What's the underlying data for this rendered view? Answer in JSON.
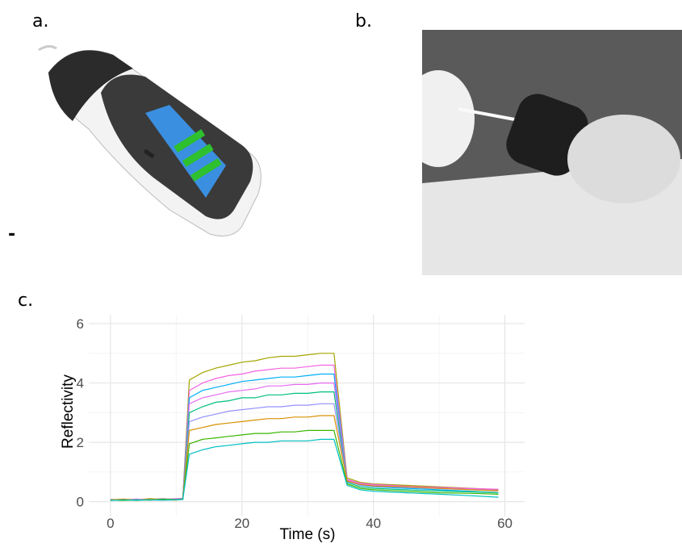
{
  "panels": {
    "a": {
      "label": "a.",
      "note": "-"
    },
    "b": {
      "label": "b."
    },
    "c": {
      "label": "c."
    }
  },
  "chart_data": {
    "type": "line",
    "x_label": "Time (s)",
    "y_label": "Reflectivity",
    "xlim": [
      -3.3,
      63
    ],
    "ylim": [
      -0.5,
      6.3
    ],
    "xticks": [
      0,
      20,
      40,
      60
    ],
    "yticks": [
      0,
      2,
      4,
      6
    ],
    "x_minor_grid": [
      10,
      30,
      50
    ],
    "y_minor_grid": [
      1,
      3,
      5
    ],
    "grid": true,
    "x": [
      0,
      2,
      4,
      6,
      8,
      10,
      11,
      12,
      14,
      16,
      18,
      20,
      22,
      24,
      26,
      28,
      30,
      32,
      34,
      36,
      38,
      40,
      45,
      50,
      55,
      59
    ],
    "series": [
      {
        "color": "#a3a500",
        "values": [
          0.05,
          0.08,
          0.06,
          0.1,
          0.07,
          0.09,
          0.12,
          4.1,
          4.35,
          4.5,
          4.6,
          4.7,
          4.75,
          4.85,
          4.9,
          4.9,
          4.95,
          5.0,
          5.0,
          0.8,
          0.65,
          0.6,
          0.55,
          0.5,
          0.45,
          0.4
        ]
      },
      {
        "color": "#f564e3",
        "values": [
          0.06,
          0.05,
          0.08,
          0.07,
          0.1,
          0.06,
          0.1,
          3.75,
          4.0,
          4.15,
          4.25,
          4.3,
          4.4,
          4.45,
          4.5,
          4.5,
          4.55,
          4.6,
          4.6,
          0.75,
          0.62,
          0.58,
          0.52,
          0.48,
          0.44,
          0.42
        ]
      },
      {
        "color": "#00b0f6",
        "values": [
          0.04,
          0.07,
          0.05,
          0.08,
          0.06,
          0.07,
          0.09,
          3.5,
          3.75,
          3.85,
          3.95,
          4.05,
          4.1,
          4.15,
          4.2,
          4.2,
          4.25,
          4.3,
          4.3,
          0.7,
          0.55,
          0.5,
          0.45,
          0.4,
          0.35,
          0.3
        ]
      },
      {
        "color": "#e76bf3",
        "values": [
          0.07,
          0.06,
          0.09,
          0.05,
          0.08,
          0.1,
          0.11,
          3.3,
          3.5,
          3.6,
          3.7,
          3.75,
          3.8,
          3.9,
          3.9,
          3.95,
          3.95,
          4.0,
          4.0,
          0.72,
          0.6,
          0.55,
          0.5,
          0.46,
          0.42,
          0.38
        ]
      },
      {
        "color": "#00bf7d",
        "values": [
          0.05,
          0.06,
          0.04,
          0.07,
          0.09,
          0.06,
          0.08,
          3.0,
          3.2,
          3.35,
          3.4,
          3.5,
          3.5,
          3.6,
          3.6,
          3.65,
          3.65,
          3.7,
          3.7,
          0.65,
          0.5,
          0.45,
          0.4,
          0.36,
          0.33,
          0.3
        ]
      },
      {
        "color": "#9590ff",
        "values": [
          0.08,
          0.05,
          0.07,
          0.06,
          0.05,
          0.08,
          0.1,
          2.7,
          2.85,
          2.95,
          3.05,
          3.1,
          3.15,
          3.2,
          3.2,
          3.25,
          3.25,
          3.3,
          3.3,
          0.68,
          0.56,
          0.52,
          0.48,
          0.44,
          0.4,
          0.36
        ]
      },
      {
        "color": "#d89000",
        "values": [
          0.06,
          0.09,
          0.05,
          0.08,
          0.07,
          0.05,
          0.09,
          2.4,
          2.5,
          2.6,
          2.65,
          2.7,
          2.75,
          2.8,
          2.8,
          2.85,
          2.85,
          2.9,
          2.9,
          0.7,
          0.58,
          0.53,
          0.5,
          0.45,
          0.4,
          0.37
        ]
      },
      {
        "color": "#39b600",
        "values": [
          0.05,
          0.04,
          0.06,
          0.05,
          0.08,
          0.07,
          0.08,
          1.95,
          2.1,
          2.15,
          2.2,
          2.25,
          2.3,
          2.3,
          2.35,
          2.35,
          2.4,
          2.4,
          2.4,
          0.6,
          0.45,
          0.4,
          0.35,
          0.3,
          0.28,
          0.25
        ]
      },
      {
        "color": "#00bfc4",
        "values": [
          0.04,
          0.06,
          0.05,
          0.06,
          0.05,
          0.06,
          0.07,
          1.6,
          1.75,
          1.85,
          1.9,
          1.95,
          2.0,
          2.0,
          2.05,
          2.05,
          2.05,
          2.1,
          2.1,
          0.55,
          0.4,
          0.35,
          0.3,
          0.25,
          0.2,
          0.15
        ]
      }
    ]
  }
}
